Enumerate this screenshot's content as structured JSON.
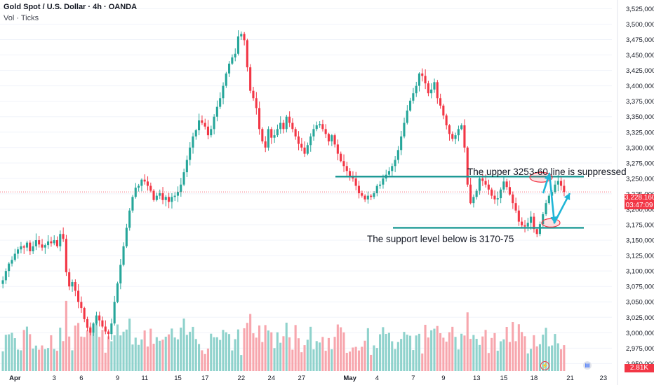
{
  "header": {
    "title": "Gold Spot / U.S. Dollar · 4h · OANDA",
    "volume_label": "Vol · Ticks"
  },
  "annotations": {
    "upper": "The upper 3253-60 line is suppressed",
    "support": "The support level below is 3170-75"
  },
  "price_tag": {
    "price": "3,228.160",
    "countdown": "03:47:09"
  },
  "volume_tag": "2.81K",
  "colors": {
    "up": "#26a69a",
    "down": "#f23645",
    "line": "#1e9a96",
    "arrow": "#1fb5d6",
    "vol_up": "#8fd2cc",
    "vol_down": "#f7a6ad"
  },
  "chart_data": {
    "type": "candlestick",
    "symbol": "Gold Spot / U.S. Dollar",
    "timeframe": "4h",
    "y_axis": {
      "ticks": [
        "3,525,000",
        "3,500,000",
        "3,475,000",
        "3,450,000",
        "3,425,000",
        "3,400,000",
        "3,375,000",
        "3,350,000",
        "3,325,000",
        "3,300,000",
        "3,275,000",
        "3,250,000",
        "3,225,000",
        "3,200,000",
        "3,175,000",
        "3,150,000",
        "3,125,000",
        "3,100,000",
        "3,075,000",
        "3,050,000",
        "3,025,000",
        "3,000,000",
        "2,975,000",
        "2,950,000"
      ],
      "range": [
        2938,
        3530
      ]
    },
    "x_axis": {
      "ticks": [
        "Apr",
        "3",
        "6",
        "9",
        "11",
        "15",
        "17",
        "22",
        "24",
        "27",
        "May",
        "4",
        "7",
        "9",
        "13",
        "15",
        "18",
        "21",
        "23"
      ],
      "tick_index": [
        4.5,
        17.5,
        26.5,
        38.5,
        47.5,
        58.5,
        67.5,
        79.5,
        89.5,
        99.5,
        115.5,
        124.5,
        136.5,
        146.5,
        157.5,
        166.5,
        176.5,
        188.5,
        199.5
      ]
    },
    "close": [
      3085,
      3100,
      3112,
      3118,
      3128,
      3135,
      3140,
      3138,
      3146,
      3132,
      3140,
      3150,
      3143,
      3138,
      3142,
      3148,
      3145,
      3150,
      3140,
      3160,
      3152,
      3098,
      3075,
      3082,
      3068,
      3050,
      3040,
      3022,
      3008,
      3000,
      3015,
      3028,
      3020,
      3010,
      3002,
      2998,
      3015,
      3050,
      3080,
      3110,
      3140,
      3170,
      3198,
      3220,
      3235,
      3238,
      3248,
      3245,
      3238,
      3230,
      3215,
      3222,
      3226,
      3215,
      3220,
      3212,
      3220,
      3222,
      3228,
      3240,
      3260,
      3280,
      3300,
      3318,
      3328,
      3344,
      3340,
      3334,
      3320,
      3330,
      3350,
      3366,
      3380,
      3400,
      3420,
      3436,
      3446,
      3452,
      3480,
      3484,
      3474,
      3430,
      3392,
      3380,
      3364,
      3330,
      3310,
      3300,
      3330,
      3316,
      3320,
      3330,
      3340,
      3330,
      3350,
      3340,
      3330,
      3318,
      3306,
      3300,
      3290,
      3304,
      3318,
      3330,
      3336,
      3338,
      3330,
      3322,
      3310,
      3320,
      3305,
      3290,
      3278,
      3270,
      3262,
      3254,
      3250,
      3238,
      3226,
      3222,
      3216,
      3222,
      3220,
      3226,
      3238,
      3240,
      3250,
      3256,
      3262,
      3270,
      3280,
      3296,
      3318,
      3340,
      3360,
      3376,
      3388,
      3400,
      3420,
      3416,
      3404,
      3388,
      3394,
      3406,
      3380,
      3368,
      3352,
      3336,
      3322,
      3314,
      3320,
      3330,
      3336,
      3300,
      3240,
      3210,
      3220,
      3230,
      3250,
      3246,
      3240,
      3232,
      3222,
      3216,
      3218,
      3232,
      3245,
      3236,
      3224,
      3210,
      3198,
      3180,
      3174,
      3172,
      3178,
      3188,
      3168,
      3160,
      3176,
      3192,
      3210,
      3222,
      3228,
      3240,
      3246,
      3238,
      3228
    ],
    "reference_lines": [
      {
        "label": "The upper 3253-60 line is suppressed",
        "value": 3253
      },
      {
        "label": "The support level below is 3170-75",
        "value": 3170
      }
    ],
    "current_price": 3228.16,
    "volume_last": "2.81K"
  }
}
